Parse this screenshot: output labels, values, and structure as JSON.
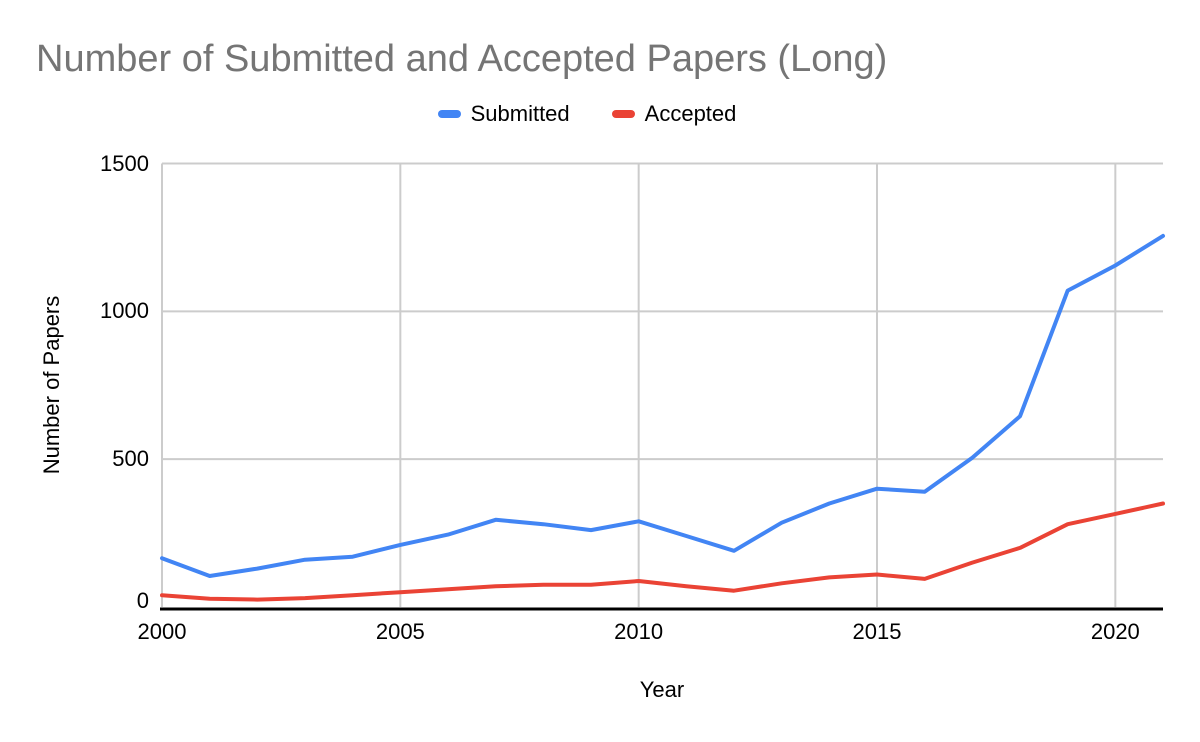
{
  "colors": {
    "background": "#ffffff",
    "title_text": "#757575",
    "axis_text": "#000000",
    "gridline": "#cccccc",
    "axis_line": "#000000",
    "submitted_blue": "#4285F4",
    "accepted_red": "#EA4335"
  },
  "chart_data": {
    "type": "line",
    "title": "Number of Submitted and Accepted Papers (Long)",
    "xlabel": "Year",
    "ylabel": "Number of Papers",
    "x": [
      2000,
      2001,
      2002,
      2003,
      2004,
      2005,
      2006,
      2007,
      2008,
      2009,
      2010,
      2011,
      2012,
      2013,
      2014,
      2015,
      2016,
      2017,
      2018,
      2019,
      2020,
      2021
    ],
    "series": [
      {
        "name": "Submitted",
        "color": "#4285F4",
        "values": [
          165,
          105,
          130,
          160,
          170,
          210,
          245,
          295,
          280,
          260,
          290,
          240,
          190,
          285,
          350,
          400,
          390,
          505,
          645,
          1070,
          1155,
          1255
        ]
      },
      {
        "name": "Accepted",
        "color": "#EA4335",
        "values": [
          40,
          28,
          25,
          30,
          40,
          50,
          60,
          70,
          75,
          75,
          88,
          70,
          55,
          80,
          100,
          110,
          95,
          150,
          200,
          280,
          315,
          350
        ]
      }
    ],
    "xlim": [
      2000,
      2021
    ],
    "ylim": [
      0,
      1500
    ],
    "xticks": [
      2000,
      2005,
      2010,
      2015,
      2020
    ],
    "yticks": [
      0,
      500,
      1000,
      1500
    ],
    "grid": true,
    "legend_position": "top"
  }
}
